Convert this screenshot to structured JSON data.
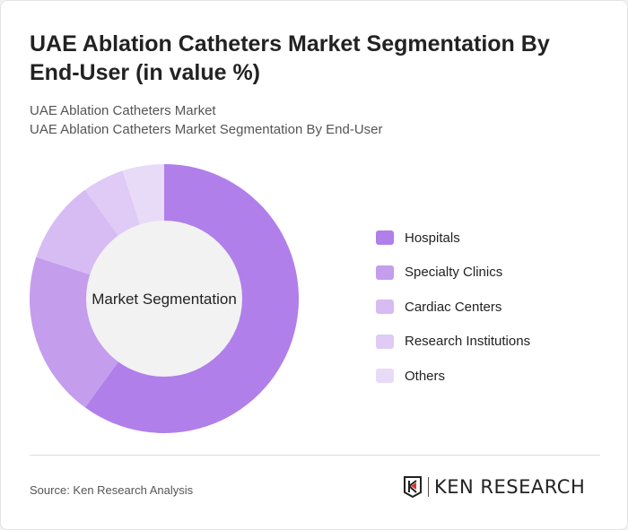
{
  "title": "UAE Ablation Catheters Market Segmentation By End-User (in value %)",
  "subtitle1": "UAE Ablation Catheters Market",
  "subtitle2": "UAE Ablation Catheters Market Segmentation By End-User",
  "source": "Source: Ken Research Analysis",
  "logo_text": "KEN RESEARCH",
  "chart_data": {
    "type": "pie",
    "variant": "donut",
    "center_label": "Market Segmentation",
    "legend_position": "right",
    "categories": [
      "Hospitals",
      "Specialty Clinics",
      "Cardiac Centers",
      "Research Institutions",
      "Others"
    ],
    "values": [
      60,
      20,
      10,
      5,
      5
    ],
    "colors": [
      "#b07fea",
      "#c49ded",
      "#d6bcf3",
      "#dfcbf5",
      "#e8dbf8"
    ]
  }
}
